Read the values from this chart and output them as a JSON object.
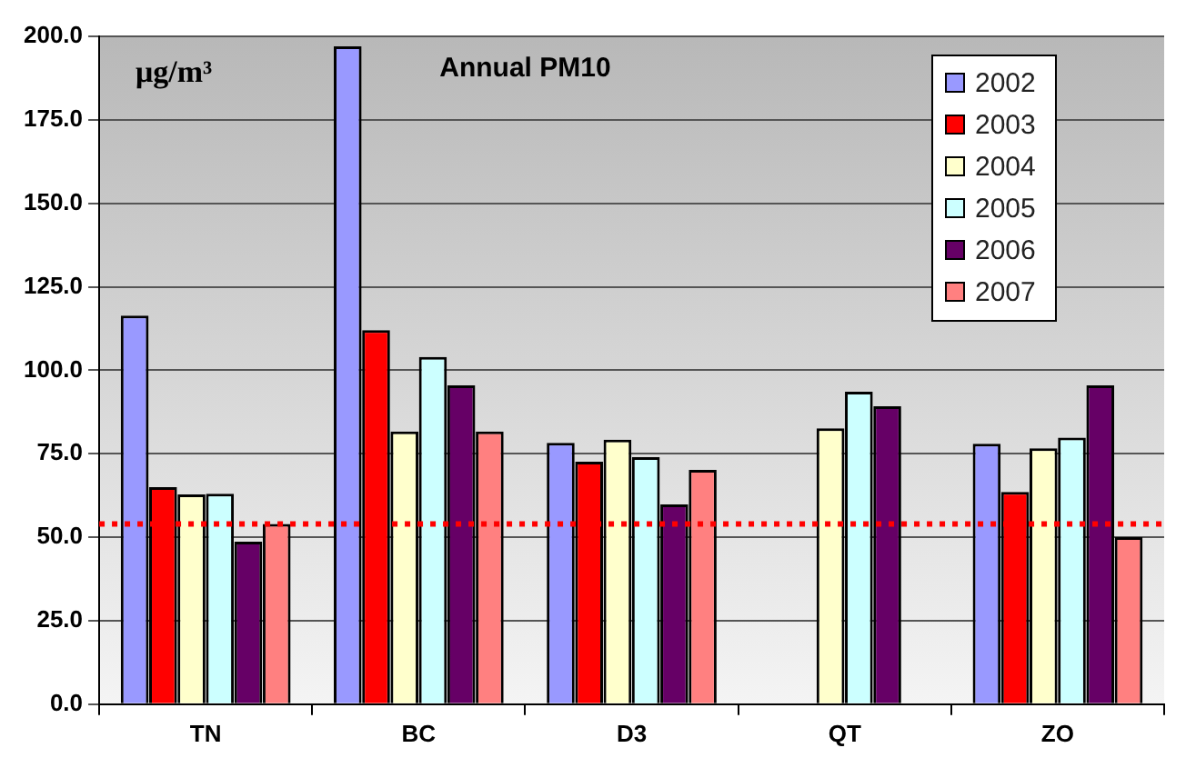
{
  "chart_data": {
    "type": "bar",
    "title": "Annual PM10",
    "ylabel": "μg/m³",
    "categories": [
      "TN",
      "BC",
      "D3",
      "QT",
      "ZO"
    ],
    "series": [
      {
        "name": "2002",
        "color": "#9999ff",
        "values": [
          116.4,
          197,
          78.3,
          null,
          78
        ]
      },
      {
        "name": "2003",
        "color": "#ff0000",
        "values": [
          65,
          112,
          72.6,
          null,
          63.6
        ]
      },
      {
        "name": "2004",
        "color": "#ffffcc",
        "values": [
          62.8,
          81.7,
          79.2,
          82.6,
          76.6
        ]
      },
      {
        "name": "2005",
        "color": "#ccffff",
        "values": [
          63,
          104,
          74,
          93.6,
          79.8
        ]
      },
      {
        "name": "2006",
        "color": "#660066",
        "values": [
          48.7,
          95.5,
          59.8,
          89.2,
          95.5
        ]
      },
      {
        "name": "2007",
        "color": "#ff8080",
        "values": [
          54,
          81.7,
          70.2,
          null,
          50
        ]
      }
    ],
    "ylim": [
      0,
      200
    ],
    "yticks": [
      {
        "value": 0,
        "label": "0.0"
      },
      {
        "value": 25,
        "label": "25.0"
      },
      {
        "value": 50,
        "label": "50.0"
      },
      {
        "value": 75,
        "label": "75.0"
      },
      {
        "value": 100,
        "label": "100.0"
      },
      {
        "value": 125,
        "label": "125.0"
      },
      {
        "value": 150,
        "label": "150.0"
      },
      {
        "value": 175,
        "label": "175.0"
      },
      {
        "value": 200,
        "label": "200.0"
      }
    ],
    "ref_lines": [
      {
        "axis": "y",
        "value": 54,
        "color": "#ff0000",
        "line_style": "dotted"
      }
    ],
    "grid": "y",
    "legend": "top right"
  }
}
